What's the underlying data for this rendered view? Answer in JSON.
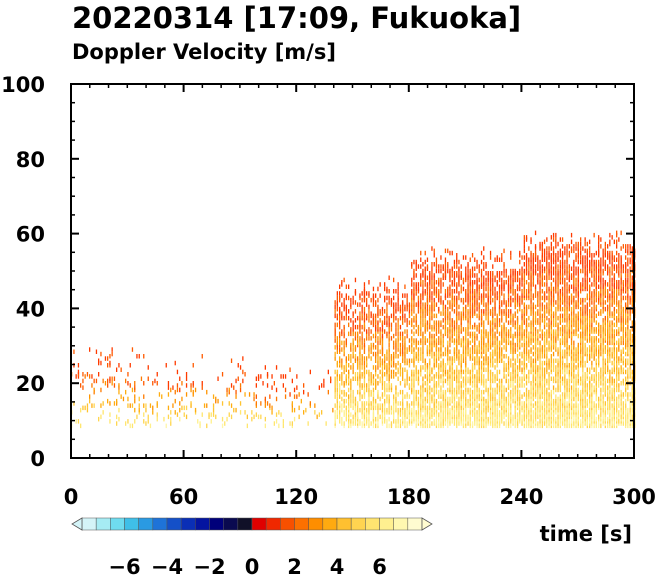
{
  "chart_data": {
    "type": "heatmap",
    "title": "20220314 [17:09, Fukuoka]",
    "subtitle": "Doppler Velocity [m/s]",
    "xlabel": "time [s]",
    "ylabel": "",
    "xlim": [
      0,
      300
    ],
    "ylim": [
      0,
      100
    ],
    "x_ticks": [
      0,
      60,
      120,
      180,
      240,
      300
    ],
    "y_ticks": [
      0,
      20,
      40,
      60,
      80,
      100
    ],
    "grid": false,
    "colorbar": {
      "label_ticks": [
        "−6",
        "−4",
        "−2",
        "0",
        "2",
        "4",
        "6"
      ],
      "range": [
        -8,
        8
      ],
      "colors": [
        "#d4f4f8",
        "#a6ecf4",
        "#6fdcef",
        "#3fbfe8",
        "#2a9ae2",
        "#1e73d8",
        "#1450c8",
        "#0a2fb6",
        "#0414a0",
        "#00007a",
        "#0a0a50",
        "#101028",
        "#e00000",
        "#f02800",
        "#f85000",
        "#fc7000",
        "#fe8e00",
        "#ffaa10",
        "#ffc030",
        "#ffd450",
        "#ffe470",
        "#fff090",
        "#fff8b0",
        "#fffcd0"
      ],
      "positive_palette": [
        "#ff3b00",
        "#ff5a00",
        "#ff7a00",
        "#ff9400",
        "#ffad10",
        "#ffc430",
        "#ffd650",
        "#ffe66e",
        "#fff08c",
        "#fff6aa"
      ]
    },
    "echo_region": {
      "field_range": [
        -1,
        8
      ],
      "min_height": 8,
      "segments": [
        {
          "t0": 0,
          "t1": 40,
          "top": 22,
          "density": 0.1
        },
        {
          "t0": 40,
          "t1": 100,
          "top": 20,
          "density": 0.09
        },
        {
          "t0": 100,
          "t1": 140,
          "top": 18,
          "density": 0.1
        },
        {
          "t0": 140,
          "t1": 180,
          "top": 40,
          "density": 0.42
        },
        {
          "t0": 180,
          "t1": 240,
          "top": 48,
          "density": 0.55
        },
        {
          "t0": 240,
          "t1": 300,
          "top": 52,
          "density": 0.6
        }
      ]
    }
  }
}
